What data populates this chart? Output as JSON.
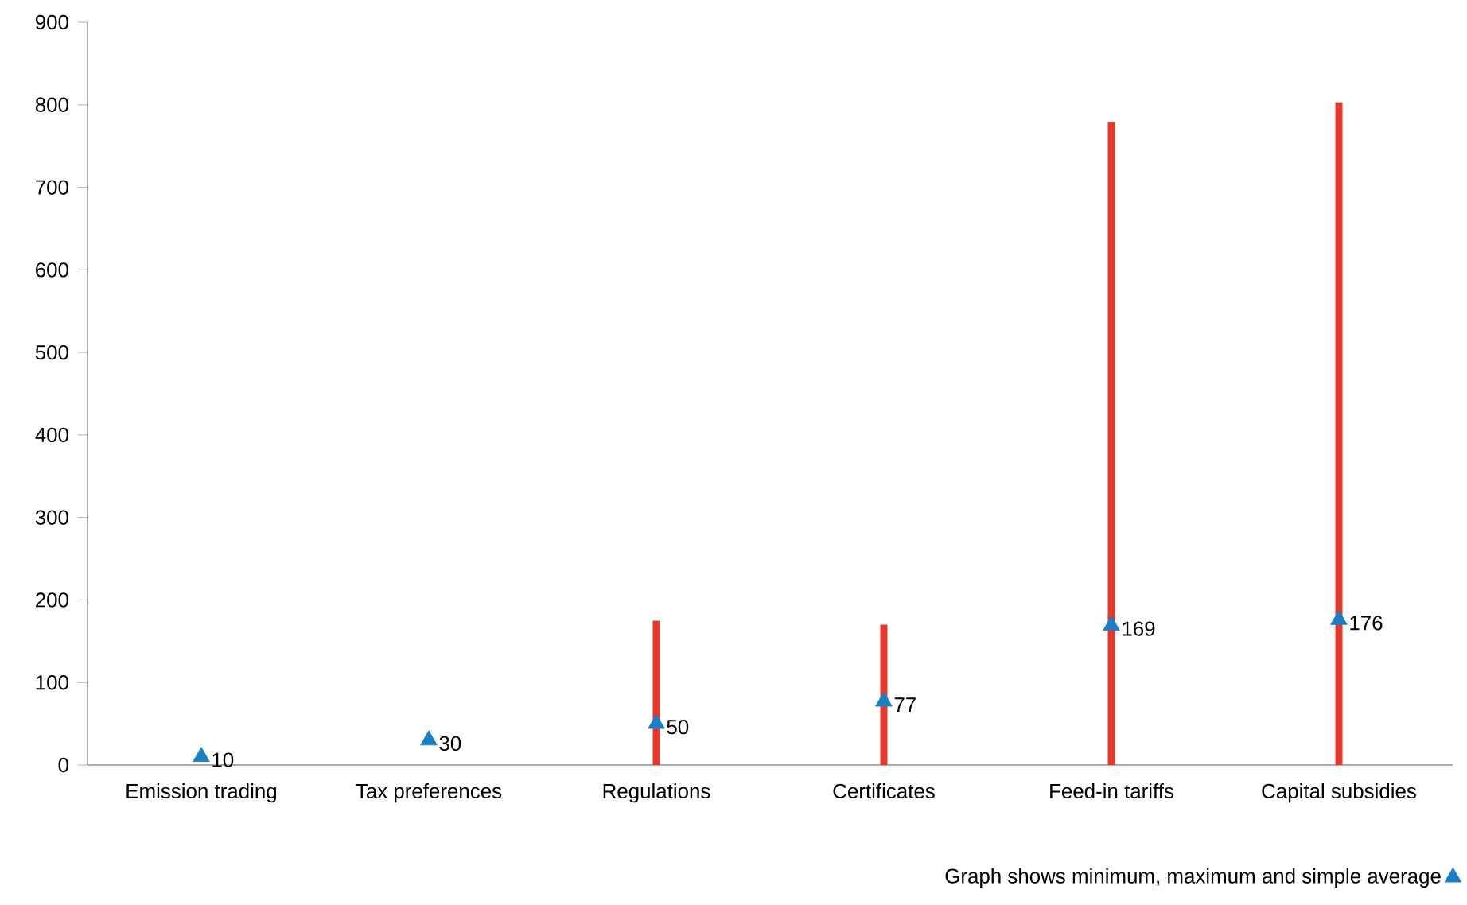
{
  "chart_data": {
    "type": "bar",
    "categories": [
      "Emission trading",
      "Tax preferences",
      "Regulations",
      "Certificates",
      "Feed-in tariffs",
      "Capital subsidies"
    ],
    "series": [
      {
        "color": "#e8382a",
        "values": [
          null,
          null,
          175,
          170,
          779,
          803
        ]
      },
      {
        "type": "scatter",
        "name": "Graph shows minimum, maximum and simple average",
        "color": "#1b7fc4",
        "marker": "triangle",
        "values": [
          10,
          30,
          50,
          77,
          169,
          176
        ],
        "value_labels": [
          "10",
          "30",
          "50",
          "77",
          "169",
          "176"
        ]
      }
    ],
    "ylim": [
      0,
      900
    ],
    "yticks": [
      0,
      100,
      200,
      300,
      400,
      500,
      600,
      700,
      800,
      900
    ],
    "legend": "bottom right"
  }
}
